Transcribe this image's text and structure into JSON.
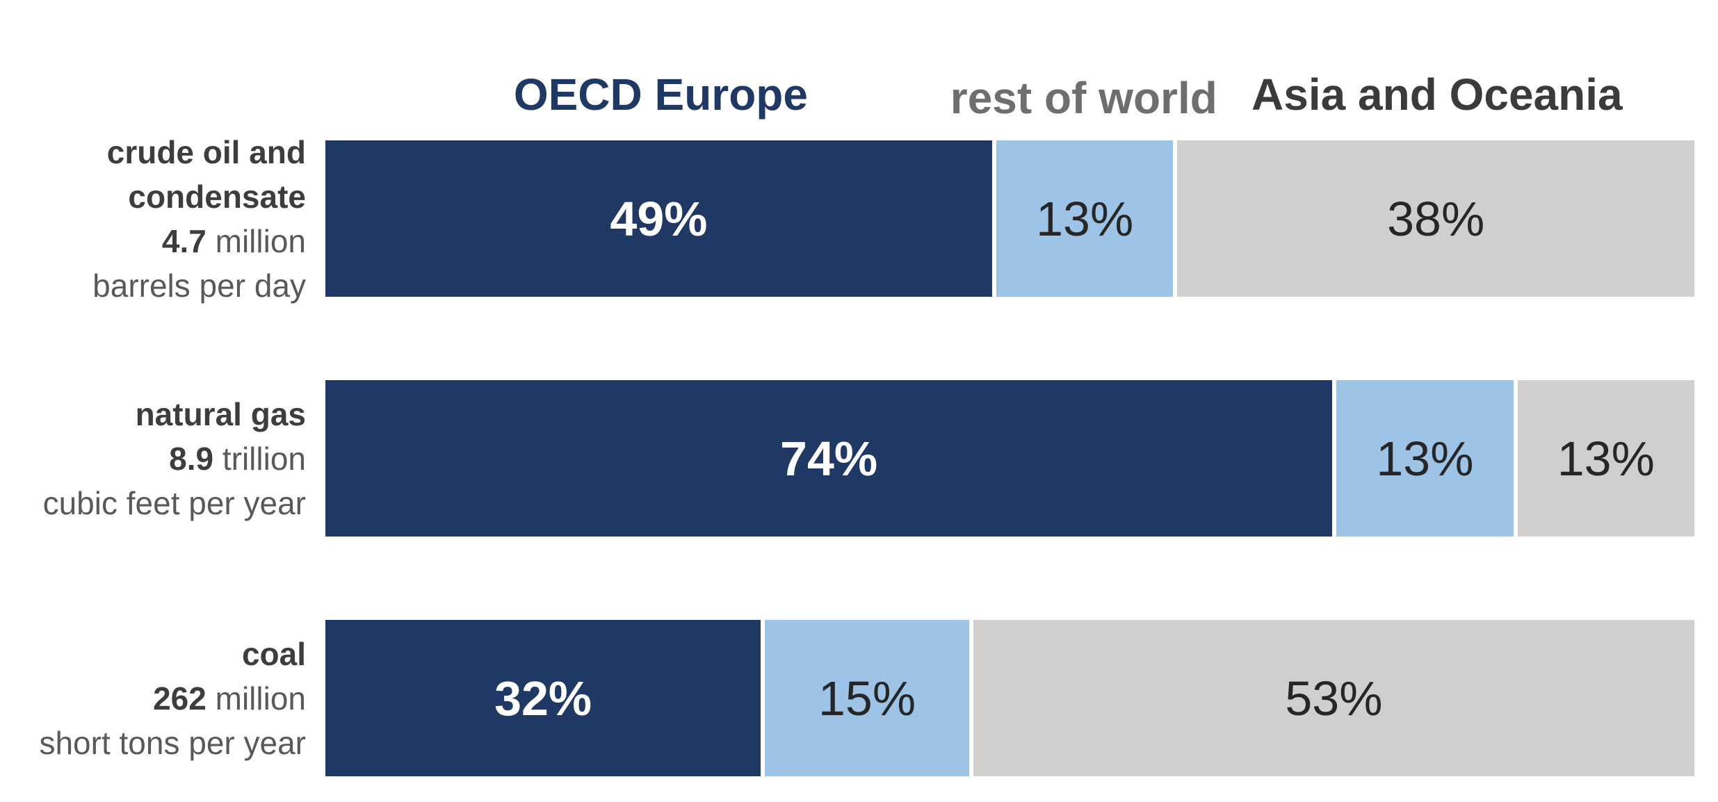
{
  "chart_data": {
    "type": "bar",
    "stacked": true,
    "orientation": "horizontal",
    "value_unit": "percent",
    "legend_position": "top (column headers above first bar)",
    "grid": false,
    "series_names": [
      "OECD Europe",
      "rest of world",
      "Asia and Oceania"
    ],
    "categories": [
      "crude oil and condensate (4.7 million barrels per day)",
      "natural gas (8.9 trillion cubic feet per year)",
      "coal (262 million short tons per year)"
    ],
    "series": [
      {
        "name": "OECD Europe",
        "color": "#1F3864",
        "values": [
          49,
          74,
          32
        ]
      },
      {
        "name": "rest of world",
        "color": "#9DC3E6",
        "values": [
          13,
          13,
          15
        ]
      },
      {
        "name": "Asia and Oceania",
        "color": "#D0CECE",
        "values": [
          38,
          13,
          53
        ]
      }
    ],
    "xlim": [
      0,
      100
    ]
  },
  "colors": {
    "oecd_europe": "#1F3864",
    "rest_of_world": "#9DC3E6",
    "asia_and_oceania": "#D0CECE",
    "header_oecd_text": "#1F3864",
    "header_restworld_text": "#6E6E6E",
    "header_asia_text": "#3B3B3B",
    "label_bold_text": "#3D3D3D",
    "label_regular_text": "#595959",
    "pct_dark_text": "#262626",
    "pct_light_text": "#FFFFFF"
  },
  "headers": [
    {
      "label": "OECD Europe"
    },
    {
      "label": "rest of world"
    },
    {
      "label": "Asia and Oceania"
    }
  ],
  "rows": [
    {
      "category": "crude oil and condensate",
      "label_lines": [
        {
          "b": "crude oil and",
          "r": ""
        },
        {
          "b": "condensate",
          "r": ""
        },
        {
          "b": "4.7",
          "r": " million"
        },
        {
          "b": "",
          "r": "barrels per day"
        }
      ],
      "segments": [
        {
          "series": "OECD Europe",
          "value": 49,
          "label": "49%"
        },
        {
          "series": "rest of world",
          "value": 13,
          "label": "13%"
        },
        {
          "series": "Asia and Oceania",
          "value": 38,
          "label": "38%"
        }
      ]
    },
    {
      "category": "natural gas",
      "label_lines": [
        {
          "b": "natural gas",
          "r": ""
        },
        {
          "b": "8.9",
          "r": " trillion"
        },
        {
          "b": "",
          "r": "cubic feet per year"
        }
      ],
      "segments": [
        {
          "series": "OECD Europe",
          "value": 74,
          "label": "74%"
        },
        {
          "series": "rest of world",
          "value": 13,
          "label": "13%"
        },
        {
          "series": "Asia and Oceania",
          "value": 13,
          "label": "13%"
        }
      ]
    },
    {
      "category": "coal",
      "label_lines": [
        {
          "b": "coal",
          "r": ""
        },
        {
          "b": "262",
          "r": " million"
        },
        {
          "b": "",
          "r": "short tons per year"
        }
      ],
      "segments": [
        {
          "series": "OECD Europe",
          "value": 32,
          "label": "32%"
        },
        {
          "series": "rest of world",
          "value": 15,
          "label": "15%"
        },
        {
          "series": "Asia and Oceania",
          "value": 53,
          "label": "53%"
        }
      ]
    }
  ]
}
